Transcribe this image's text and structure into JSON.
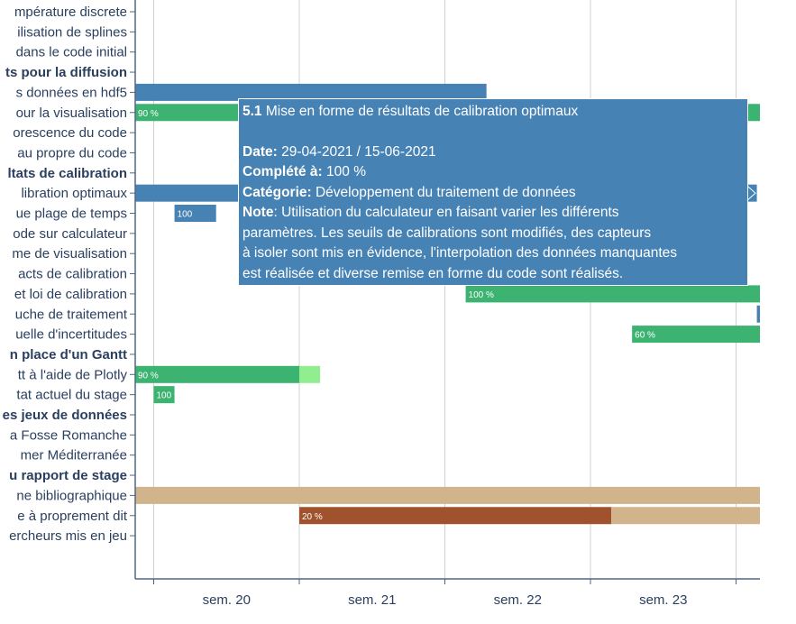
{
  "colors": {
    "grid": "#d0d0d0",
    "axis": "#506784",
    "text": "#2a3f5f",
    "blue": "#4682b4",
    "green": "#3cb371",
    "lightgreen": "#90ee90",
    "tan": "#d2b48c",
    "brown": "#a0522d"
  },
  "chart_data": {
    "type": "gantt",
    "x_axis": {
      "tick_labels": [
        "sem. 20",
        "sem. 21",
        "sem. 22",
        "sem. 23"
      ]
    },
    "tasks": [
      {
        "label": "mpérature discrete"
      },
      {
        "label": "ilisation de splines"
      },
      {
        "label": "dans le code initial"
      },
      {
        "label": "ts pour la diffusion",
        "bold": true
      },
      {
        "label": "s données en hdf5",
        "bars": [
          {
            "start": "2021-05-12",
            "end": "2021-06-02",
            "color": "blue"
          }
        ]
      },
      {
        "label": "our la visualisation",
        "bars": [
          {
            "start": "2021-05-13",
            "end": "2021-06-22",
            "color": "green",
            "percent_label": "90 %"
          }
        ]
      },
      {
        "label": "orescence du code"
      },
      {
        "label": "au propre du code"
      },
      {
        "label": "ltats de calibration",
        "bold": true
      },
      {
        "label": "libration optimaux",
        "bars": [
          {
            "start": "2021-04-29",
            "end": "2021-06-15",
            "color": "blue"
          }
        ]
      },
      {
        "label": "ue plage de temps",
        "bars": [
          {
            "start": "2021-05-18",
            "end": "2021-05-20",
            "color": "blue",
            "percent_label": "100"
          }
        ]
      },
      {
        "label": "ode sur calculateur"
      },
      {
        "label": "me de visualisation"
      },
      {
        "label": "acts de calibration"
      },
      {
        "label": "et loi de calibration",
        "bars": [
          {
            "start": "2021-06-01",
            "end": "2021-06-22",
            "color": "green",
            "percent_label": "100 %"
          }
        ]
      },
      {
        "label": "uche de traitement",
        "bars": [
          {
            "start": "2021-06-15",
            "end": "2021-06-16",
            "color": "blue"
          }
        ]
      },
      {
        "label": "uelle d'incertitudes",
        "bars": [
          {
            "start": "2021-06-09",
            "end": "2021-06-22",
            "color": "green",
            "percent_label": "60 %"
          }
        ]
      },
      {
        "label": "n place d'un Gantt",
        "bold": true
      },
      {
        "label": "tt à l'aide de Plotly",
        "bars": [
          {
            "start": "2021-05-15",
            "end": "2021-05-24",
            "color": "green",
            "percent_label": "90 %"
          },
          {
            "start": "2021-05-24",
            "end": "2021-05-25",
            "color": "lightgreen"
          }
        ]
      },
      {
        "label": "tat actuel du stage",
        "bars": [
          {
            "start": "2021-05-17",
            "end": "2021-05-18",
            "color": "green",
            "percent_label": "100 %"
          }
        ]
      },
      {
        "label": "es jeux de données",
        "bold": true
      },
      {
        "label": "a Fosse Romanche"
      },
      {
        "label": " mer Méditerranée"
      },
      {
        "label": "u rapport de stage",
        "bold": true
      },
      {
        "label": "ne bibliographique",
        "bars": [
          {
            "start": "2021-05-12",
            "end": "2021-06-22",
            "color": "tan"
          }
        ]
      },
      {
        "label": "e à proprement dit",
        "bars": [
          {
            "start": "2021-05-24",
            "end": "2021-06-08",
            "color": "brown",
            "percent_label": "20 %"
          },
          {
            "start": "2021-06-08",
            "end": "2021-06-22",
            "color": "tan"
          }
        ]
      },
      {
        "label": "ercheurs mis en jeu"
      }
    ]
  },
  "tooltip": {
    "task_number": "5.1",
    "task_title": " Mise en forme de résultats de calibration optimaux",
    "date_label": "Date:",
    "date_value": "  29-04-2021 / 15-06-2021",
    "complete_label": "Complété à:",
    "complete_value": " 100 %",
    "category_label": "Catégorie:",
    "category_value": " Développement du traitement de données",
    "note_label": "Note",
    "note_lines": [
      ": Utilisation du calculateur en faisant varier les différents",
      "paramètres. Les seuils de calibrations sont modifiés, des capteurs",
      "à isoler sont mis en évidence, l'interpolation des données manquantes",
      "est réalisée et diverse remise en forme du code sont réalisés."
    ]
  }
}
